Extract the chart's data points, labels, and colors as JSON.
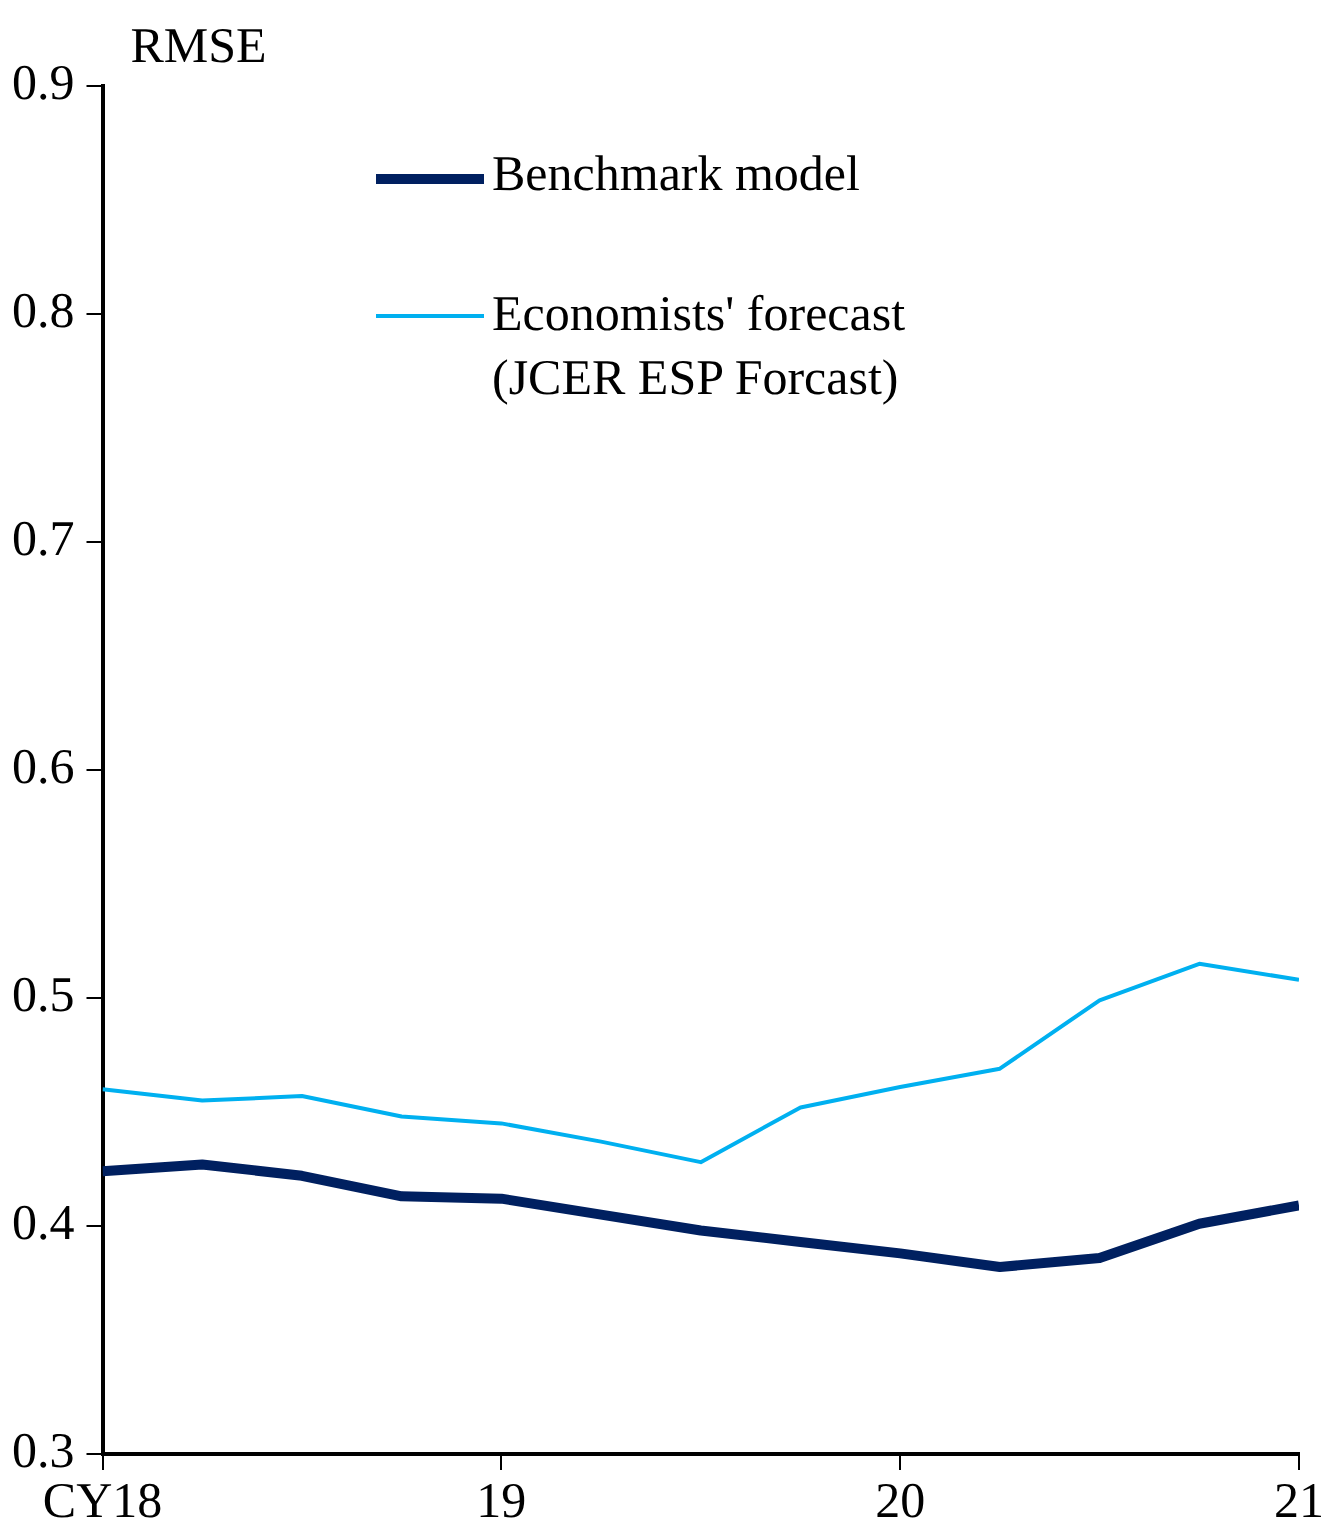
{
  "chart_data": {
    "type": "line",
    "ylabel": "RMSE",
    "x": [
      2018,
      2018.25,
      2018.5,
      2018.75,
      2019,
      2019.25,
      2019.5,
      2019.75,
      2020,
      2020.25,
      2020.5,
      2020.75,
      2021
    ],
    "xlim": [
      2018,
      2021
    ],
    "xticks": [
      {
        "value": 2018,
        "label": "CY18"
      },
      {
        "value": 2019,
        "label": "19"
      },
      {
        "value": 2020,
        "label": "20"
      },
      {
        "value": 2021,
        "label": "21"
      }
    ],
    "ylim": [
      0.3,
      0.9
    ],
    "yticks": [
      0.3,
      0.4,
      0.5,
      0.6,
      0.7,
      0.8,
      0.9
    ],
    "grid": false,
    "legend": "top",
    "marker": "none",
    "line_style": "solid",
    "series": [
      {
        "name": "Benchmark model",
        "color": "#002060",
        "values": [
          0.424,
          0.427,
          0.422,
          0.413,
          0.412,
          0.405,
          0.398,
          0.393,
          0.388,
          0.382,
          0.386,
          0.401,
          0.409
        ]
      },
      {
        "name": "Economists' forecast (JCER ESP Forcast)",
        "color": "#00b0f0",
        "values": [
          0.46,
          0.455,
          0.457,
          0.448,
          0.445,
          0.437,
          0.428,
          0.452,
          0.461,
          0.469,
          0.499,
          0.515,
          0.508
        ]
      }
    ]
  }
}
